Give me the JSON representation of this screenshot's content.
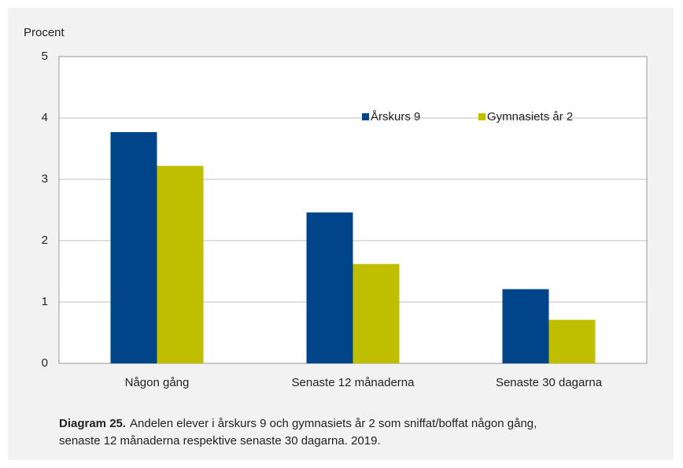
{
  "chart_data": {
    "type": "bar",
    "y_label": "Procent",
    "categories": [
      "Någon gång",
      "Senaste 12 månaderna",
      "Senaste 30 dagarna"
    ],
    "series": [
      {
        "name": "Årskurs 9",
        "color": "#00458a",
        "values": [
          3.77,
          2.46,
          1.21
        ]
      },
      {
        "name": "Gymnasiets år 2",
        "color": "#bfbf00",
        "values": [
          3.22,
          1.62,
          0.71
        ]
      }
    ],
    "ylim": [
      0,
      5
    ],
    "yticks": [
      0,
      1,
      2,
      3,
      4,
      5
    ],
    "grid": true,
    "legend": "top-right",
    "caption": {
      "label": "Diagram 25.",
      "lines": [
        "Andelen elever i årskurs 9 och gymnasiets år 2 som sniffat/boffat någon gång,",
        "senaste 12 månaderna respektive senaste 30 dagarna. 2019."
      ]
    }
  }
}
